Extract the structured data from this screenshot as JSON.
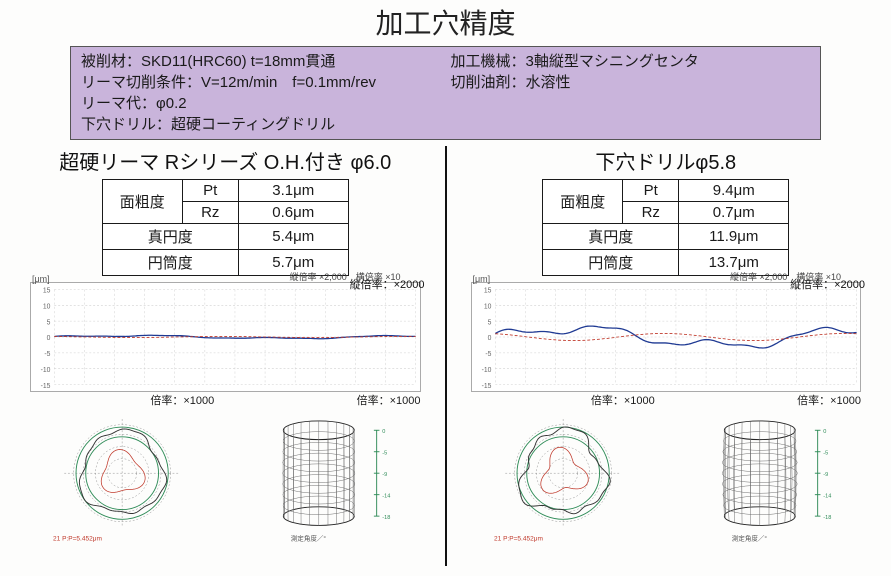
{
  "title": "加工穴精度",
  "conditions": {
    "l1a": "被削材：SKD11(HRC60) t=18mm貫通",
    "l1b": "加工機械：3軸縦型マシニングセンタ",
    "l2a": "リーマ切削条件：V=12m/min　f=0.1mm/rev",
    "l2b": "切削油剤：水溶性",
    "l3": "リーマ代：φ0.2",
    "l4": "下穴ドリル：超硬コーティングドリル"
  },
  "left": {
    "title": "超硬リーマ Rシリーズ  O.H.付き φ6.0",
    "rough_label": "面粗度",
    "pt_label": "Pt",
    "pt_value": "3.1μm",
    "rz_label": "Rz",
    "rz_value": "0.6μm",
    "round_label": "真円度",
    "round_value": "5.4μm",
    "cyl_label": "円筒度",
    "cyl_value": "5.7μm",
    "profile_mag": "縦倍率：×2000",
    "profile_top": "縦倍率 ×2,000　横倍率 ×10",
    "mag1000": "倍率：×1000",
    "profile": {
      "ylim": [
        -15,
        15
      ],
      "amplitude": 0.7,
      "baseline": 0,
      "colors": {
        "primary": "#1f3a93",
        "secondary": "#c0392b",
        "grid": "#d0d0d0"
      }
    },
    "roundness": {
      "irregularity": 0.12
    },
    "cylindricity": {
      "bulge": 0.03
    }
  },
  "right": {
    "title": "下穴ドリルφ5.8",
    "rough_label": "面粗度",
    "pt_label": "Pt",
    "pt_value": "9.4μm",
    "rz_label": "Rz",
    "rz_value": "0.7μm",
    "round_label": "真円度",
    "round_value": "11.9μm",
    "cyl_label": "円筒度",
    "cyl_value": "13.7μm",
    "profile_mag": "縦倍率：×2000",
    "profile_top": "縦倍率 ×2,000　横倍率 ×10",
    "mag1000": "倍率：×1000",
    "profile": {
      "ylim": [
        -15,
        15
      ],
      "amplitude": 4.5,
      "baseline": 0,
      "colors": {
        "primary": "#1f3a93",
        "secondary": "#c0392b",
        "grid": "#d0d0d0"
      }
    },
    "roundness": {
      "irregularity": 0.2
    },
    "cylindricity": {
      "bulge": 0.1
    }
  },
  "axis_unit": "[μm]"
}
